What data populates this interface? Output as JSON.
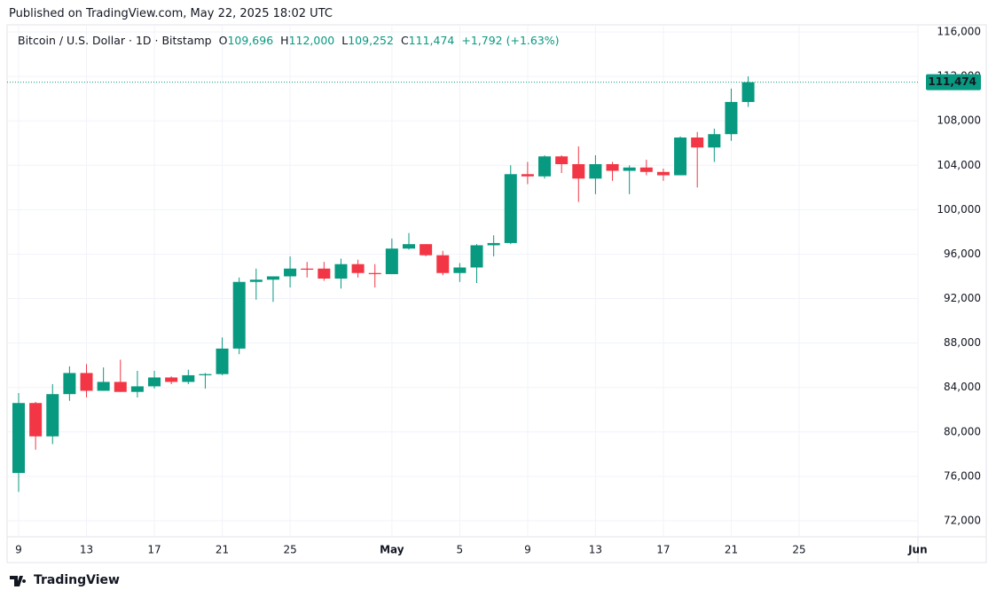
{
  "published": "Published on TradingView.com, May 22, 2025 18:02 UTC",
  "brand": "TradingView",
  "chart_data": {
    "type": "candlestick",
    "title": "Bitcoin / U.S. Dollar · 1D · Bitstamp",
    "ohlc_legend": [
      {
        "label": "O",
        "value": "109,696"
      },
      {
        "label": "H",
        "value": "112,000"
      },
      {
        "label": "L",
        "value": "109,252"
      },
      {
        "label": "C",
        "value": "111,474"
      }
    ],
    "change": "+1,792 (+1.63%)",
    "last_price_label": "111,474",
    "up_color": "#089981",
    "down_color": "#f23645",
    "grid": true,
    "x": [
      "2025-04-09",
      "2025-04-10",
      "2025-04-11",
      "2025-04-12",
      "2025-04-13",
      "2025-04-14",
      "2025-04-15",
      "2025-04-16",
      "2025-04-17",
      "2025-04-18",
      "2025-04-19",
      "2025-04-20",
      "2025-04-21",
      "2025-04-22",
      "2025-04-23",
      "2025-04-24",
      "2025-04-25",
      "2025-04-26",
      "2025-04-27",
      "2025-04-28",
      "2025-04-29",
      "2025-04-30",
      "2025-05-01",
      "2025-05-02",
      "2025-05-03",
      "2025-05-04",
      "2025-05-05",
      "2025-05-06",
      "2025-05-07",
      "2025-05-08",
      "2025-05-09",
      "2025-05-10",
      "2025-05-11",
      "2025-05-12",
      "2025-05-13",
      "2025-05-14",
      "2025-05-15",
      "2025-05-16",
      "2025-05-17",
      "2025-05-18",
      "2025-05-19",
      "2025-05-20",
      "2025-05-21",
      "2025-05-22"
    ],
    "open": [
      76300,
      82600,
      79600,
      83400,
      85300,
      83700,
      84500,
      83600,
      84100,
      84900,
      84500,
      85100,
      85200,
      87500,
      93500,
      93700,
      94000,
      94700,
      94700,
      93800,
      95100,
      94300,
      94200,
      96500,
      96900,
      95900,
      94300,
      94800,
      96800,
      97000,
      103200,
      103000,
      104800,
      104100,
      102800,
      104100,
      103500,
      103800,
      103400,
      103100,
      106500,
      105600,
      106800,
      109696
    ],
    "high": [
      83500,
      82700,
      84300,
      85900,
      86100,
      85800,
      86500,
      85500,
      85500,
      85000,
      85600,
      85300,
      88500,
      93900,
      94700,
      94000,
      95800,
      95300,
      95300,
      95600,
      95500,
      95100,
      97400,
      97900,
      96900,
      96300,
      95200,
      96900,
      97700,
      104000,
      104300,
      104900,
      104900,
      105700,
      104900,
      104300,
      104000,
      104500,
      103700,
      106600,
      107000,
      107300,
      110900,
      112000
    ],
    "low": [
      74600,
      78400,
      78900,
      82800,
      83100,
      83700,
      83600,
      83100,
      83900,
      84300,
      84300,
      83900,
      85100,
      87000,
      91900,
      91700,
      93000,
      93900,
      93600,
      92900,
      93900,
      93000,
      94200,
      96400,
      95800,
      94100,
      93500,
      93400,
      95800,
      96900,
      102300,
      102800,
      103300,
      100700,
      101400,
      102600,
      101400,
      103100,
      102600,
      103100,
      102000,
      104300,
      106200,
      109252
    ],
    "close": [
      82600,
      79600,
      83400,
      85300,
      83700,
      84500,
      83600,
      84100,
      84900,
      84500,
      85100,
      85200,
      87500,
      93500,
      93700,
      94000,
      94700,
      94600,
      93800,
      95100,
      94300,
      94200,
      96500,
      96900,
      95900,
      94300,
      94800,
      96800,
      97000,
      103200,
      103000,
      104800,
      104100,
      102800,
      104100,
      103500,
      103800,
      103400,
      103100,
      106500,
      105600,
      106800,
      109700,
      111474
    ],
    "xticks": [
      {
        "value": "2025-04-09",
        "label": "9"
      },
      {
        "value": "2025-04-13",
        "label": "13"
      },
      {
        "value": "2025-04-17",
        "label": "17"
      },
      {
        "value": "2025-04-21",
        "label": "21"
      },
      {
        "value": "2025-04-25",
        "label": "25"
      },
      {
        "value": "2025-05-01",
        "label": "May"
      },
      {
        "value": "2025-05-05",
        "label": "5"
      },
      {
        "value": "2025-05-09",
        "label": "9"
      },
      {
        "value": "2025-05-13",
        "label": "13"
      },
      {
        "value": "2025-05-17",
        "label": "17"
      },
      {
        "value": "2025-05-21",
        "label": "21"
      },
      {
        "value": "2025-05-25",
        "label": "25"
      },
      {
        "value": "2025-06-01",
        "label": "Jun"
      }
    ],
    "ylim": [
      70560,
      116640
    ],
    "yticks": [
      {
        "value": 72000,
        "label": "72,000"
      },
      {
        "value": 76000,
        "label": "76,000"
      },
      {
        "value": 80000,
        "label": "80,000"
      },
      {
        "value": 84000,
        "label": "84,000"
      },
      {
        "value": 88000,
        "label": "88,000"
      },
      {
        "value": 92000,
        "label": "92,000"
      },
      {
        "value": 96000,
        "label": "96,000"
      },
      {
        "value": 100000,
        "label": "100,000"
      },
      {
        "value": 104000,
        "label": "104,000"
      },
      {
        "value": 108000,
        "label": "108,000"
      },
      {
        "value": 112000,
        "label": "112,000"
      },
      {
        "value": 116000,
        "label": "116,000"
      }
    ]
  }
}
